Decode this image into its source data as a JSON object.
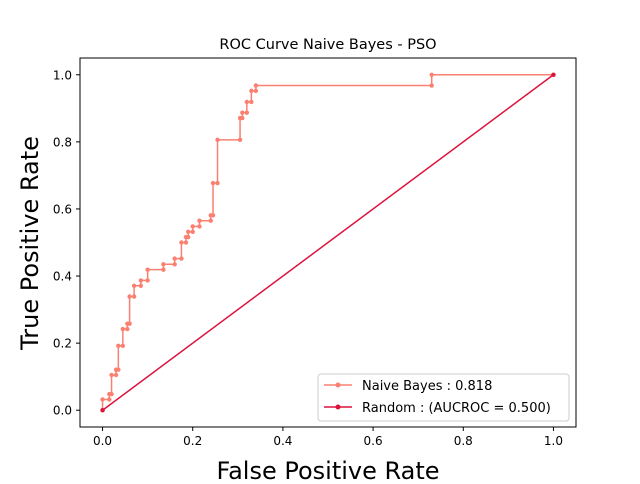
{
  "chart_data": {
    "type": "line",
    "title": "ROC Curve Naive Bayes - PSO",
    "xlabel": "False Positive Rate",
    "ylabel": "True Positive Rate",
    "xlim": [
      -0.05,
      1.05
    ],
    "ylim": [
      -0.05,
      1.05
    ],
    "xticks": [
      0.0,
      0.2,
      0.4,
      0.6,
      0.8,
      1.0
    ],
    "xtick_labels": [
      "0.0",
      "0.2",
      "0.4",
      "0.6",
      "0.8",
      "1.0"
    ],
    "yticks": [
      0.0,
      0.2,
      0.4,
      0.6,
      0.8,
      1.0
    ],
    "ytick_labels": [
      "0.0",
      "0.2",
      "0.4",
      "0.6",
      "0.8",
      "1.0"
    ],
    "grid": false,
    "legend_position": "lower-right",
    "series": [
      {
        "name": "Naive Bayes : 0.818",
        "color": "#fa8072",
        "x": [
          0.0,
          0.0,
          0.015,
          0.015,
          0.02,
          0.02,
          0.03,
          0.03,
          0.035,
          0.035,
          0.045,
          0.045,
          0.055,
          0.055,
          0.06,
          0.06,
          0.07,
          0.07,
          0.085,
          0.085,
          0.1,
          0.1,
          0.135,
          0.135,
          0.16,
          0.16,
          0.175,
          0.175,
          0.185,
          0.185,
          0.19,
          0.19,
          0.2,
          0.2,
          0.215,
          0.215,
          0.24,
          0.24,
          0.245,
          0.245,
          0.255,
          0.255,
          0.305,
          0.305,
          0.31,
          0.31,
          0.32,
          0.32,
          0.33,
          0.33,
          0.34,
          0.34,
          0.73,
          0.73,
          1.0
        ],
        "y": [
          0.0,
          0.032,
          0.032,
          0.048,
          0.048,
          0.105,
          0.105,
          0.121,
          0.121,
          0.192,
          0.192,
          0.242,
          0.242,
          0.258,
          0.258,
          0.339,
          0.339,
          0.371,
          0.371,
          0.387,
          0.387,
          0.419,
          0.419,
          0.435,
          0.435,
          0.452,
          0.452,
          0.5,
          0.5,
          0.516,
          0.516,
          0.532,
          0.532,
          0.548,
          0.548,
          0.565,
          0.565,
          0.581,
          0.581,
          0.677,
          0.677,
          0.806,
          0.806,
          0.871,
          0.871,
          0.887,
          0.887,
          0.919,
          0.919,
          0.952,
          0.952,
          0.968,
          0.968,
          1.0,
          1.0
        ]
      },
      {
        "name": "Random : (AUCROC = 0.500)",
        "color": "#dc143c",
        "x": [
          0.0,
          1.0
        ],
        "y": [
          0.0,
          1.0
        ]
      }
    ]
  }
}
